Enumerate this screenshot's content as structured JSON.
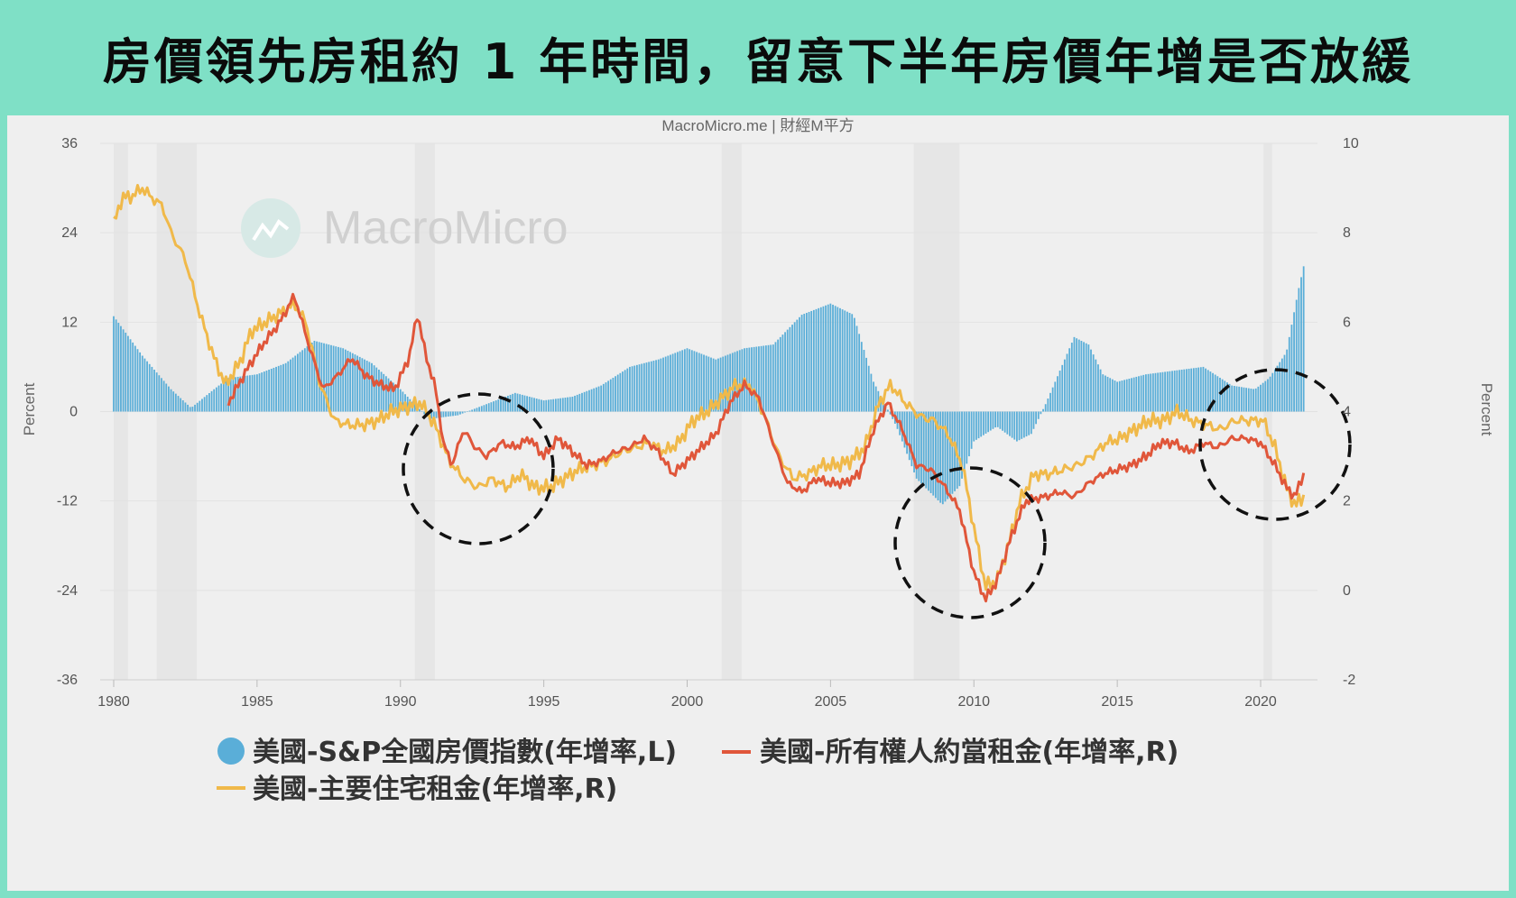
{
  "banner": {
    "title": "房價領先房租約 1 年時間，留意下半年房價年增是否放緩"
  },
  "credit": "MacroMicro.me | 財經M平方",
  "watermark": "MacroMicro",
  "colors": {
    "bars": "#5aaed8",
    "owners_rent": "#e0563a",
    "primary_rent": "#f0b94a",
    "background": "#efefef",
    "banner": "#7fe0c6"
  },
  "chart_data": {
    "type": "bar",
    "x_range": [
      1980,
      2021.6
    ],
    "xticks": [
      "1980",
      "1985",
      "1990",
      "1995",
      "2000",
      "2005",
      "2010",
      "2015",
      "2020"
    ],
    "y_left": {
      "label": "Percent",
      "ylim": [
        -36,
        36
      ],
      "ticks": [
        "36",
        "24",
        "12",
        "0",
        "-12",
        "-24",
        "-36"
      ]
    },
    "y_right": {
      "label": "Percent",
      "ylim": [
        -2,
        10
      ],
      "ticks": [
        "10",
        "8",
        "6",
        "4",
        "2",
        "0",
        "-2"
      ]
    },
    "legend_position": "bottom",
    "series": [
      {
        "name": "美國-S&P全國房價指數(年增率,L)",
        "kind": "bar",
        "axis": "left",
        "points": [
          [
            1980,
            12.8
          ],
          [
            1981,
            7.5
          ],
          [
            1982,
            3
          ],
          [
            1982.7,
            0.5
          ],
          [
            1983.5,
            3
          ],
          [
            1984,
            4.5
          ],
          [
            1985,
            5
          ],
          [
            1986,
            6.5
          ],
          [
            1987,
            9.5
          ],
          [
            1988,
            8.5
          ],
          [
            1989,
            6.5
          ],
          [
            1990,
            3
          ],
          [
            1991,
            -1
          ],
          [
            1992,
            -0.5
          ],
          [
            1993,
            1
          ],
          [
            1994,
            2.5
          ],
          [
            1995,
            1.5
          ],
          [
            1996,
            2
          ],
          [
            1997,
            3.5
          ],
          [
            1998,
            6
          ],
          [
            1999,
            7
          ],
          [
            2000,
            8.5
          ],
          [
            2001,
            7
          ],
          [
            2002,
            8.5
          ],
          [
            2003,
            9
          ],
          [
            2004,
            13
          ],
          [
            2005,
            14.5
          ],
          [
            2005.8,
            13
          ],
          [
            2006.5,
            4
          ],
          [
            2007.3,
            -2
          ],
          [
            2008,
            -9
          ],
          [
            2008.9,
            -12.5
          ],
          [
            2009.5,
            -10
          ],
          [
            2010,
            -4
          ],
          [
            2010.8,
            -2
          ],
          [
            2011.5,
            -4
          ],
          [
            2012,
            -3
          ],
          [
            2012.5,
            1
          ],
          [
            2013.5,
            10
          ],
          [
            2014,
            9
          ],
          [
            2014.5,
            5
          ],
          [
            2015,
            4
          ],
          [
            2016,
            5
          ],
          [
            2017,
            5.5
          ],
          [
            2018,
            6
          ],
          [
            2019,
            3.5
          ],
          [
            2019.8,
            3
          ],
          [
            2020.3,
            4.5
          ],
          [
            2020.9,
            8
          ],
          [
            2021.3,
            16
          ],
          [
            2021.5,
            19.5
          ]
        ]
      },
      {
        "name": "美國-所有權人約當租金(年增率,R)",
        "kind": "line",
        "axis": "right",
        "points": [
          [
            1984,
            4.2
          ],
          [
            1984.7,
            5
          ],
          [
            1985.2,
            5.5
          ],
          [
            1985.8,
            6
          ],
          [
            1986.3,
            6.6
          ],
          [
            1986.8,
            5.5
          ],
          [
            1987.3,
            4.5
          ],
          [
            1987.8,
            4.8
          ],
          [
            1988.3,
            5.2
          ],
          [
            1988.8,
            4.8
          ],
          [
            1989.3,
            4.6
          ],
          [
            1989.8,
            4.5
          ],
          [
            1990.3,
            5.2
          ],
          [
            1990.6,
            6.2
          ],
          [
            1990.9,
            5.2
          ],
          [
            1991.2,
            4.6
          ],
          [
            1991.5,
            3.3
          ],
          [
            1991.8,
            2.8
          ],
          [
            1992.2,
            3.6
          ],
          [
            1992.6,
            3.2
          ],
          [
            1993,
            3.0
          ],
          [
            1993.5,
            3.3
          ],
          [
            1994,
            3.2
          ],
          [
            1994.5,
            3.4
          ],
          [
            1995,
            3.0
          ],
          [
            1995.5,
            3.4
          ],
          [
            1996,
            3.1
          ],
          [
            1996.5,
            2.8
          ],
          [
            1997,
            2.9
          ],
          [
            1997.5,
            3.1
          ],
          [
            1998,
            3.2
          ],
          [
            1998.5,
            3.4
          ],
          [
            1999,
            3.1
          ],
          [
            1999.5,
            2.6
          ],
          [
            2000,
            2.9
          ],
          [
            2000.5,
            3.2
          ],
          [
            2001,
            3.5
          ],
          [
            2001.5,
            4.2
          ],
          [
            2002,
            4.6
          ],
          [
            2002.5,
            4.3
          ],
          [
            2003,
            3.3
          ],
          [
            2003.5,
            2.4
          ],
          [
            2004,
            2.2
          ],
          [
            2004.5,
            2.5
          ],
          [
            2005,
            2.4
          ],
          [
            2005.5,
            2.4
          ],
          [
            2006,
            2.6
          ],
          [
            2006.5,
            3.6
          ],
          [
            2007,
            4.2
          ],
          [
            2007.5,
            3.6
          ],
          [
            2008,
            2.8
          ],
          [
            2008.5,
            2.7
          ],
          [
            2009,
            2.3
          ],
          [
            2009.5,
            1.8
          ],
          [
            2010,
            0.4
          ],
          [
            2010.4,
            -0.2
          ],
          [
            2010.8,
            0.2
          ],
          [
            2011.3,
            1.2
          ],
          [
            2011.8,
            2.0
          ],
          [
            2012.5,
            2.1
          ],
          [
            2013,
            2.2
          ],
          [
            2013.5,
            2.1
          ],
          [
            2014,
            2.4
          ],
          [
            2014.5,
            2.6
          ],
          [
            2015,
            2.7
          ],
          [
            2015.5,
            2.8
          ],
          [
            2016,
            3.0
          ],
          [
            2016.5,
            3.3
          ],
          [
            2017,
            3.3
          ],
          [
            2017.5,
            3.1
          ],
          [
            2018,
            3.3
          ],
          [
            2018.5,
            3.2
          ],
          [
            2019,
            3.4
          ],
          [
            2019.5,
            3.4
          ],
          [
            2020,
            3.3
          ],
          [
            2020.5,
            2.8
          ],
          [
            2020.9,
            2.3
          ],
          [
            2021.2,
            2.1
          ],
          [
            2021.5,
            2.6
          ]
        ]
      },
      {
        "name": "美國-主要住宅租金(年增率,R)",
        "kind": "line",
        "axis": "right",
        "points": [
          [
            1980,
            8.2
          ],
          [
            1980.3,
            8.8
          ],
          [
            1980.6,
            8.8
          ],
          [
            1981,
            9.0
          ],
          [
            1981.3,
            8.8
          ],
          [
            1981.7,
            8.6
          ],
          [
            1982,
            8.0
          ],
          [
            1982.5,
            7.4
          ],
          [
            1983,
            6.2
          ],
          [
            1983.5,
            5.2
          ],
          [
            1983.9,
            4.6
          ],
          [
            1984.4,
            5.1
          ],
          [
            1984.8,
            5.8
          ],
          [
            1985.3,
            6.0
          ],
          [
            1985.8,
            6.2
          ],
          [
            1986.3,
            6.4
          ],
          [
            1986.7,
            6.0
          ],
          [
            1987.2,
            4.6
          ],
          [
            1987.7,
            3.8
          ],
          [
            1988.2,
            3.7
          ],
          [
            1988.7,
            3.7
          ],
          [
            1989.2,
            3.8
          ],
          [
            1989.7,
            4.0
          ],
          [
            1990.2,
            4.1
          ],
          [
            1990.7,
            4.2
          ],
          [
            1991.2,
            3.7
          ],
          [
            1991.7,
            2.9
          ],
          [
            1992.2,
            2.5
          ],
          [
            1992.7,
            2.3
          ],
          [
            1993.2,
            2.5
          ],
          [
            1993.7,
            2.3
          ],
          [
            1994.2,
            2.6
          ],
          [
            1994.7,
            2.3
          ],
          [
            1995.2,
            2.3
          ],
          [
            1995.7,
            2.5
          ],
          [
            1996.2,
            2.7
          ],
          [
            1996.7,
            2.8
          ],
          [
            1997.2,
            2.9
          ],
          [
            1997.7,
            3.1
          ],
          [
            1998.2,
            3.2
          ],
          [
            1998.7,
            3.3
          ],
          [
            1999.2,
            3.1
          ],
          [
            1999.7,
            3.3
          ],
          [
            2000.2,
            3.8
          ],
          [
            2000.7,
            4.0
          ],
          [
            2001.2,
            4.3
          ],
          [
            2001.7,
            4.6
          ],
          [
            2002.2,
            4.6
          ],
          [
            2002.7,
            3.9
          ],
          [
            2003.2,
            3.0
          ],
          [
            2003.7,
            2.5
          ],
          [
            2004.2,
            2.6
          ],
          [
            2004.7,
            2.8
          ],
          [
            2005.2,
            2.8
          ],
          [
            2005.7,
            2.9
          ],
          [
            2006.2,
            3.2
          ],
          [
            2006.7,
            4.2
          ],
          [
            2007.1,
            4.6
          ],
          [
            2007.6,
            4.2
          ],
          [
            2008.1,
            3.9
          ],
          [
            2008.6,
            3.8
          ],
          [
            2009.1,
            3.5
          ],
          [
            2009.6,
            2.8
          ],
          [
            2010,
            1.4
          ],
          [
            2010.4,
            0.1
          ],
          [
            2010.8,
            0.2
          ],
          [
            2011.2,
            1.0
          ],
          [
            2011.6,
            2.0
          ],
          [
            2012.1,
            2.6
          ],
          [
            2012.6,
            2.6
          ],
          [
            2013.1,
            2.7
          ],
          [
            2013.6,
            2.8
          ],
          [
            2014.1,
            3.0
          ],
          [
            2014.6,
            3.3
          ],
          [
            2015.1,
            3.4
          ],
          [
            2015.6,
            3.6
          ],
          [
            2016.1,
            3.8
          ],
          [
            2016.6,
            3.8
          ],
          [
            2017.1,
            4.0
          ],
          [
            2017.6,
            3.8
          ],
          [
            2018.1,
            3.7
          ],
          [
            2018.6,
            3.6
          ],
          [
            2019.1,
            3.8
          ],
          [
            2019.6,
            3.8
          ],
          [
            2020.1,
            3.8
          ],
          [
            2020.5,
            3.2
          ],
          [
            2020.9,
            2.3
          ],
          [
            2021.2,
            1.9
          ],
          [
            2021.5,
            2.1
          ]
        ]
      }
    ]
  }
}
